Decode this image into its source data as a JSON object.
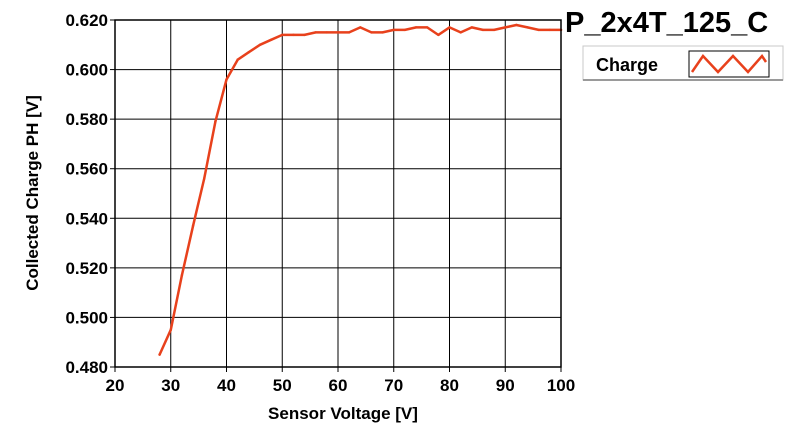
{
  "chart_data": {
    "type": "line",
    "title": "P_2x4T_125_C",
    "xlabel": "Sensor Voltage [V]",
    "ylabel": "Collected Charge PH [V]",
    "xlim": [
      20,
      100
    ],
    "ylim": [
      0.48,
      0.62
    ],
    "xticks": [
      "20",
      "30",
      "40",
      "50",
      "60",
      "70",
      "80",
      "90",
      "100"
    ],
    "yticks": [
      "0.480",
      "0.500",
      "0.520",
      "0.540",
      "0.560",
      "0.580",
      "0.600",
      "0.620"
    ],
    "grid": true,
    "legend_position": "top-right",
    "series": [
      {
        "name": "Charge",
        "color": "#e8411c",
        "x": [
          28,
          30,
          32,
          34,
          36,
          38,
          40,
          42,
          44,
          46,
          48,
          50,
          52,
          54,
          56,
          58,
          60,
          62,
          64,
          66,
          68,
          70,
          72,
          74,
          76,
          78,
          80,
          82,
          84,
          86,
          88,
          90,
          92,
          94,
          96,
          98,
          100
        ],
        "values": [
          0.485,
          0.495,
          0.517,
          0.537,
          0.556,
          0.579,
          0.596,
          0.604,
          0.607,
          0.61,
          0.612,
          0.614,
          0.614,
          0.614,
          0.615,
          0.615,
          0.615,
          0.615,
          0.617,
          0.615,
          0.615,
          0.616,
          0.616,
          0.617,
          0.617,
          0.614,
          0.617,
          0.615,
          0.617,
          0.616,
          0.616,
          0.617,
          0.618,
          0.617,
          0.616,
          0.616,
          0.616
        ]
      }
    ]
  }
}
